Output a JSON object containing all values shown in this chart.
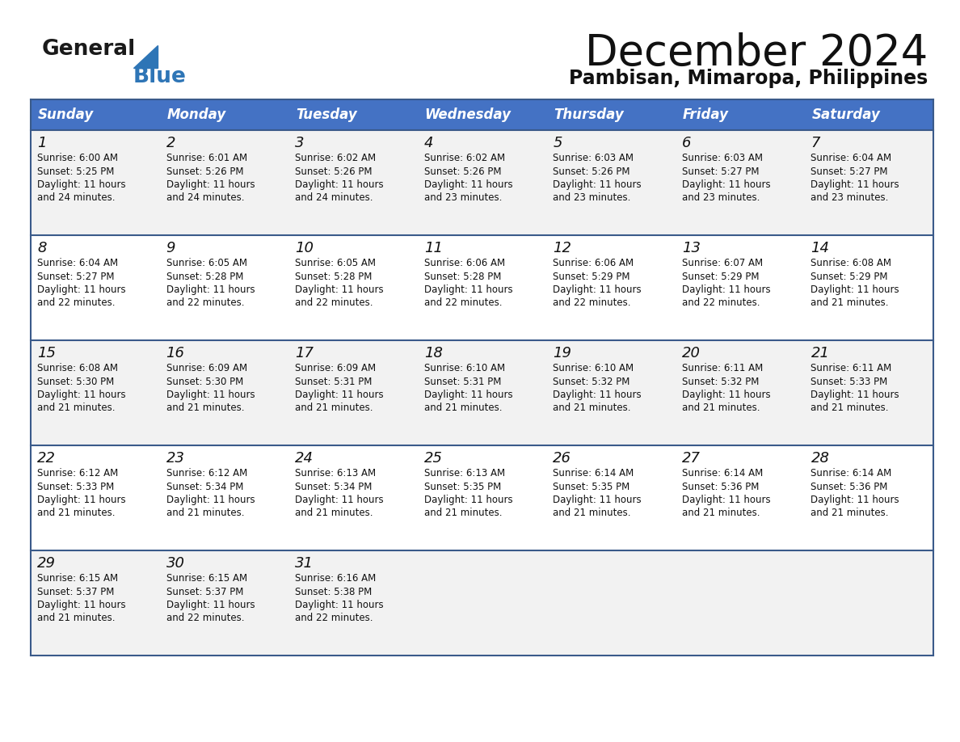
{
  "title": "December 2024",
  "subtitle": "Pambisan, Mimaropa, Philippines",
  "header_color": "#4472C4",
  "header_text_color": "#FFFFFF",
  "days_of_week": [
    "Sunday",
    "Monday",
    "Tuesday",
    "Wednesday",
    "Thursday",
    "Friday",
    "Saturday"
  ],
  "row_bg_even": "#F2F2F2",
  "row_bg_odd": "#FFFFFF",
  "border_color": "#3A5A8A",
  "text_color": "#111111",
  "logo_general_color": "#1a1a1a",
  "logo_blue_color": "#2E75B6",
  "title_fontsize": 38,
  "subtitle_fontsize": 17,
  "header_fontsize": 12,
  "day_num_fontsize": 13,
  "cell_text_fontsize": 8.5,
  "calendar_data": [
    [
      {
        "day": 1,
        "sunrise": "6:00 AM",
        "sunset": "5:25 PM",
        "daylight_h": "11 hours",
        "daylight_m": "and 24 minutes."
      },
      {
        "day": 2,
        "sunrise": "6:01 AM",
        "sunset": "5:26 PM",
        "daylight_h": "11 hours",
        "daylight_m": "and 24 minutes."
      },
      {
        "day": 3,
        "sunrise": "6:02 AM",
        "sunset": "5:26 PM",
        "daylight_h": "11 hours",
        "daylight_m": "and 24 minutes."
      },
      {
        "day": 4,
        "sunrise": "6:02 AM",
        "sunset": "5:26 PM",
        "daylight_h": "11 hours",
        "daylight_m": "and 23 minutes."
      },
      {
        "day": 5,
        "sunrise": "6:03 AM",
        "sunset": "5:26 PM",
        "daylight_h": "11 hours",
        "daylight_m": "and 23 minutes."
      },
      {
        "day": 6,
        "sunrise": "6:03 AM",
        "sunset": "5:27 PM",
        "daylight_h": "11 hours",
        "daylight_m": "and 23 minutes."
      },
      {
        "day": 7,
        "sunrise": "6:04 AM",
        "sunset": "5:27 PM",
        "daylight_h": "11 hours",
        "daylight_m": "and 23 minutes."
      }
    ],
    [
      {
        "day": 8,
        "sunrise": "6:04 AM",
        "sunset": "5:27 PM",
        "daylight_h": "11 hours",
        "daylight_m": "and 22 minutes."
      },
      {
        "day": 9,
        "sunrise": "6:05 AM",
        "sunset": "5:28 PM",
        "daylight_h": "11 hours",
        "daylight_m": "and 22 minutes."
      },
      {
        "day": 10,
        "sunrise": "6:05 AM",
        "sunset": "5:28 PM",
        "daylight_h": "11 hours",
        "daylight_m": "and 22 minutes."
      },
      {
        "day": 11,
        "sunrise": "6:06 AM",
        "sunset": "5:28 PM",
        "daylight_h": "11 hours",
        "daylight_m": "and 22 minutes."
      },
      {
        "day": 12,
        "sunrise": "6:06 AM",
        "sunset": "5:29 PM",
        "daylight_h": "11 hours",
        "daylight_m": "and 22 minutes."
      },
      {
        "day": 13,
        "sunrise": "6:07 AM",
        "sunset": "5:29 PM",
        "daylight_h": "11 hours",
        "daylight_m": "and 22 minutes."
      },
      {
        "day": 14,
        "sunrise": "6:08 AM",
        "sunset": "5:29 PM",
        "daylight_h": "11 hours",
        "daylight_m": "and 21 minutes."
      }
    ],
    [
      {
        "day": 15,
        "sunrise": "6:08 AM",
        "sunset": "5:30 PM",
        "daylight_h": "11 hours",
        "daylight_m": "and 21 minutes."
      },
      {
        "day": 16,
        "sunrise": "6:09 AM",
        "sunset": "5:30 PM",
        "daylight_h": "11 hours",
        "daylight_m": "and 21 minutes."
      },
      {
        "day": 17,
        "sunrise": "6:09 AM",
        "sunset": "5:31 PM",
        "daylight_h": "11 hours",
        "daylight_m": "and 21 minutes."
      },
      {
        "day": 18,
        "sunrise": "6:10 AM",
        "sunset": "5:31 PM",
        "daylight_h": "11 hours",
        "daylight_m": "and 21 minutes."
      },
      {
        "day": 19,
        "sunrise": "6:10 AM",
        "sunset": "5:32 PM",
        "daylight_h": "11 hours",
        "daylight_m": "and 21 minutes."
      },
      {
        "day": 20,
        "sunrise": "6:11 AM",
        "sunset": "5:32 PM",
        "daylight_h": "11 hours",
        "daylight_m": "and 21 minutes."
      },
      {
        "day": 21,
        "sunrise": "6:11 AM",
        "sunset": "5:33 PM",
        "daylight_h": "11 hours",
        "daylight_m": "and 21 minutes."
      }
    ],
    [
      {
        "day": 22,
        "sunrise": "6:12 AM",
        "sunset": "5:33 PM",
        "daylight_h": "11 hours",
        "daylight_m": "and 21 minutes."
      },
      {
        "day": 23,
        "sunrise": "6:12 AM",
        "sunset": "5:34 PM",
        "daylight_h": "11 hours",
        "daylight_m": "and 21 minutes."
      },
      {
        "day": 24,
        "sunrise": "6:13 AM",
        "sunset": "5:34 PM",
        "daylight_h": "11 hours",
        "daylight_m": "and 21 minutes."
      },
      {
        "day": 25,
        "sunrise": "6:13 AM",
        "sunset": "5:35 PM",
        "daylight_h": "11 hours",
        "daylight_m": "and 21 minutes."
      },
      {
        "day": 26,
        "sunrise": "6:14 AM",
        "sunset": "5:35 PM",
        "daylight_h": "11 hours",
        "daylight_m": "and 21 minutes."
      },
      {
        "day": 27,
        "sunrise": "6:14 AM",
        "sunset": "5:36 PM",
        "daylight_h": "11 hours",
        "daylight_m": "and 21 minutes."
      },
      {
        "day": 28,
        "sunrise": "6:14 AM",
        "sunset": "5:36 PM",
        "daylight_h": "11 hours",
        "daylight_m": "and 21 minutes."
      }
    ],
    [
      {
        "day": 29,
        "sunrise": "6:15 AM",
        "sunset": "5:37 PM",
        "daylight_h": "11 hours",
        "daylight_m": "and 21 minutes."
      },
      {
        "day": 30,
        "sunrise": "6:15 AM",
        "sunset": "5:37 PM",
        "daylight_h": "11 hours",
        "daylight_m": "and 22 minutes."
      },
      {
        "day": 31,
        "sunrise": "6:16 AM",
        "sunset": "5:38 PM",
        "daylight_h": "11 hours",
        "daylight_m": "and 22 minutes."
      },
      null,
      null,
      null,
      null
    ]
  ]
}
